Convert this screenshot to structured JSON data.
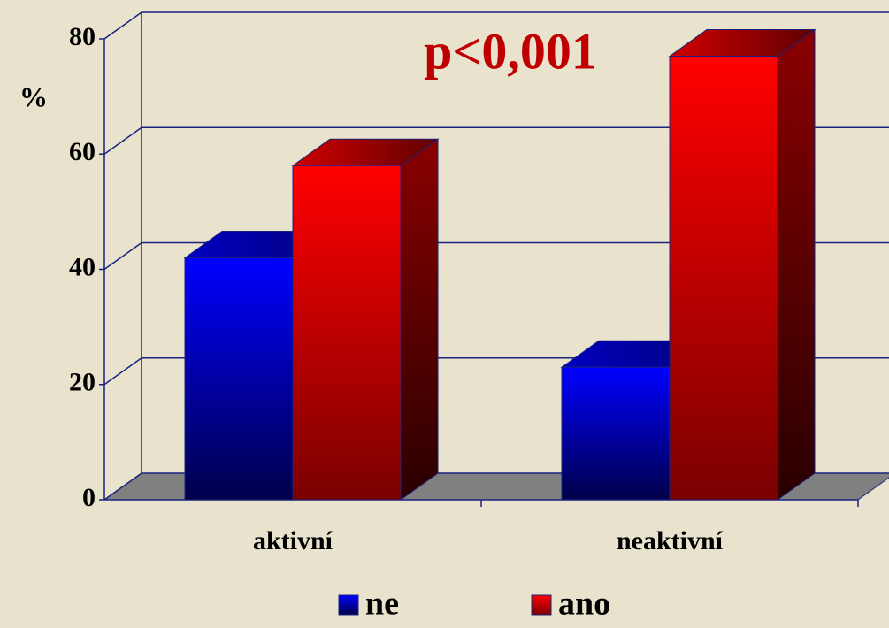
{
  "chart_data": {
    "type": "bar3d",
    "annotation": "p<0,001",
    "ylabel": "%",
    "categories": [
      "aktivní",
      "neaktivní"
    ],
    "series": [
      {
        "name": "ne",
        "color": "#0000ff",
        "values": [
          42,
          23
        ]
      },
      {
        "name": "ano",
        "color": "#ff0000",
        "values": [
          58,
          77
        ]
      }
    ],
    "ylim": [
      0,
      80
    ],
    "yticks": [
      0,
      20,
      40,
      60,
      80
    ],
    "grid": true,
    "legend": "bottom"
  }
}
